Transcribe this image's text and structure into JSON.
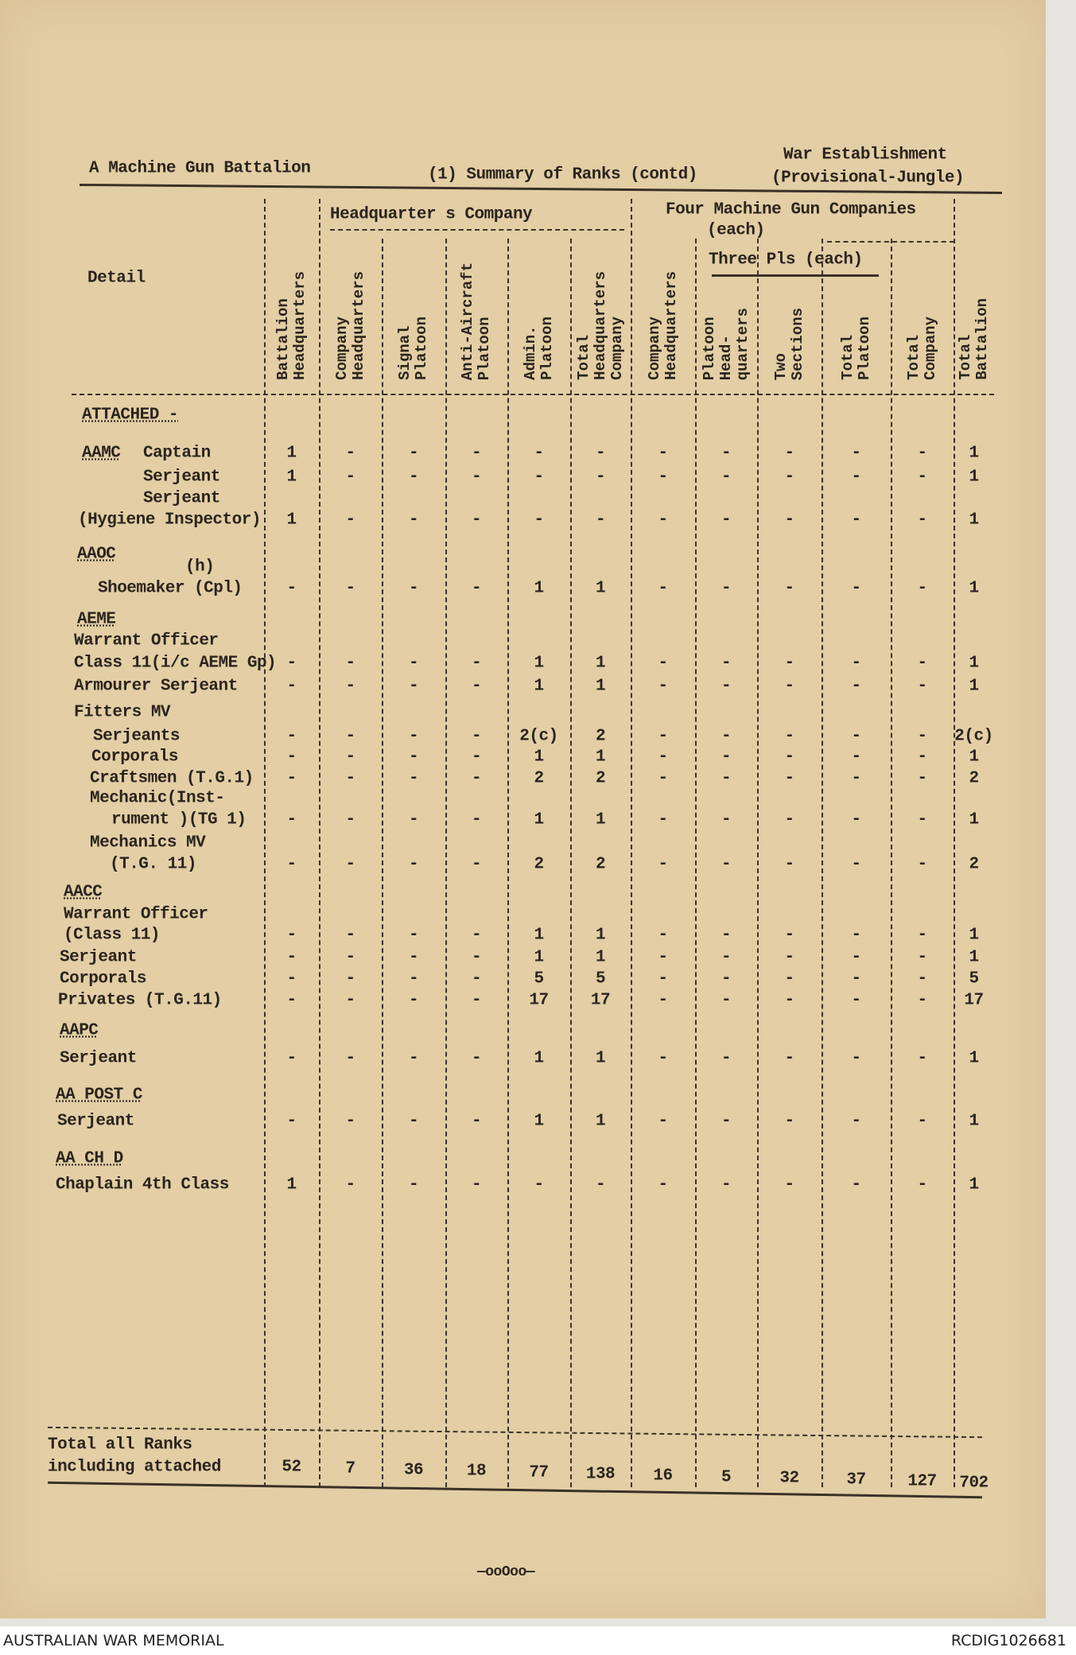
{
  "header": {
    "title": "A Machine Gun Battalion",
    "subtitle": "(1) Summary of Ranks (contd)",
    "establishment_line1": "War Establishment",
    "establishment_line2": "(Provisional-Jungle)"
  },
  "groups": {
    "hq_company": "Headquarter s Company",
    "mg_companies": "Four Machine Gun Companies",
    "mg_each": "(each)",
    "three_pls": "Three Pls (each)"
  },
  "detail_heading": "Detail",
  "columns": [
    [
      "Battalion",
      "Headquarters"
    ],
    [
      "Company",
      "Headquarters"
    ],
    [
      "Signal",
      "Platoon"
    ],
    [
      "Anti-Aircraft",
      "Platoon"
    ],
    [
      "Admin.",
      "Platoon"
    ],
    [
      "Total",
      "Headquarters",
      "Company"
    ],
    [
      "Company",
      "Headquarters"
    ],
    [
      "Platoon",
      "Head-",
      "quarters"
    ],
    [
      "Two",
      "Sections"
    ],
    [
      "Total",
      "Platoon"
    ],
    [
      "Total",
      "Company"
    ],
    [
      "Total",
      "Battalion"
    ]
  ],
  "rows": [
    {
      "section": "ATTACHED -"
    },
    {
      "section": "AAMC",
      "label": [
        "Captain"
      ],
      "values": [
        "1",
        "-",
        "-",
        "-",
        "-",
        "-",
        "-",
        "-",
        "-",
        "-",
        "-",
        "1"
      ]
    },
    {
      "label": [
        "Serjeant"
      ],
      "values": [
        "1",
        "-",
        "-",
        "-",
        "-",
        "-",
        "-",
        "-",
        "-",
        "-",
        "-",
        "1"
      ]
    },
    {
      "label": [
        "Serjeant",
        "(Hygiene Inspector)"
      ],
      "values": [
        "1",
        "-",
        "-",
        "-",
        "-",
        "-",
        "-",
        "-",
        "-",
        "-",
        "-",
        "1"
      ]
    },
    {
      "section": "AAOC",
      "note": "(h)"
    },
    {
      "label": [
        "Shoemaker (Cpl)"
      ],
      "values": [
        "-",
        "-",
        "-",
        "-",
        "1",
        "1",
        "-",
        "-",
        "-",
        "-",
        "-",
        "1"
      ]
    },
    {
      "section": "AEME"
    },
    {
      "label": [
        "Warrant Officer",
        "Class 11(i/c AEME Gp)"
      ],
      "values": [
        "-",
        "-",
        "-",
        "-",
        "1",
        "1",
        "-",
        "-",
        "-",
        "-",
        "-",
        "1"
      ]
    },
    {
      "label": [
        "Armourer Serjeant"
      ],
      "values": [
        "-",
        "-",
        "-",
        "-",
        "1",
        "1",
        "-",
        "-",
        "-",
        "-",
        "-",
        "1"
      ]
    },
    {
      "label": [
        "Fitters MV"
      ]
    },
    {
      "label": [
        "Serjeants"
      ],
      "values": [
        "-",
        "-",
        "-",
        "-",
        "2(c)",
        "2",
        "-",
        "-",
        "-",
        "-",
        "-",
        "2(c)"
      ]
    },
    {
      "label": [
        "Corporals"
      ],
      "values": [
        "-",
        "-",
        "-",
        "-",
        "1",
        "1",
        "-",
        "-",
        "-",
        "-",
        "-",
        "1"
      ]
    },
    {
      "label": [
        "Craftsmen (T.G.1)"
      ],
      "values": [
        "-",
        "-",
        "-",
        "-",
        "2",
        "2",
        "-",
        "-",
        "-",
        "-",
        "-",
        "2"
      ]
    },
    {
      "label": [
        "Mechanic(Inst-",
        "rument )(TG 1)"
      ],
      "values": [
        "-",
        "-",
        "-",
        "-",
        "1",
        "1",
        "-",
        "-",
        "-",
        "-",
        "-",
        "1"
      ]
    },
    {
      "label": [
        "Mechanics MV",
        "(T.G. 11)"
      ],
      "values": [
        "-",
        "-",
        "-",
        "-",
        "2",
        "2",
        "-",
        "-",
        "-",
        "-",
        "-",
        "2"
      ]
    },
    {
      "section": "AACC"
    },
    {
      "label": [
        "Warrant Officer",
        "(Class 11)"
      ],
      "values": [
        "-",
        "-",
        "-",
        "-",
        "1",
        "1",
        "-",
        "-",
        "-",
        "-",
        "-",
        "1"
      ]
    },
    {
      "label": [
        "Serjeant"
      ],
      "values": [
        "-",
        "-",
        "-",
        "-",
        "1",
        "1",
        "-",
        "-",
        "-",
        "-",
        "-",
        "1"
      ]
    },
    {
      "label": [
        "Corporals"
      ],
      "values": [
        "-",
        "-",
        "-",
        "-",
        "5",
        "5",
        "-",
        "-",
        "-",
        "-",
        "-",
        "5"
      ]
    },
    {
      "label": [
        "Privates (T.G.11)"
      ],
      "values": [
        "-",
        "-",
        "-",
        "-",
        "17",
        "17",
        "-",
        "-",
        "-",
        "-",
        "-",
        "17"
      ]
    },
    {
      "section": "AAPC"
    },
    {
      "label": [
        "Serjeant"
      ],
      "values": [
        "-",
        "-",
        "-",
        "-",
        "1",
        "1",
        "-",
        "-",
        "-",
        "-",
        "-",
        "1"
      ]
    },
    {
      "section": "AA POST C"
    },
    {
      "label": [
        "Serjeant"
      ],
      "values": [
        "-",
        "-",
        "-",
        "-",
        "1",
        "1",
        "-",
        "-",
        "-",
        "-",
        "-",
        "1"
      ]
    },
    {
      "section": "AA CH D"
    },
    {
      "label": [
        "Chaplain 4th Class"
      ],
      "values": [
        "1",
        "-",
        "-",
        "-",
        "-",
        "-",
        "-",
        "-",
        "-",
        "-",
        "-",
        "1"
      ]
    }
  ],
  "totals": {
    "label": [
      "Total all Ranks",
      "including attached"
    ],
    "values": [
      "52",
      "7",
      "36",
      "18",
      "77",
      "138",
      "16",
      "5",
      "32",
      "37",
      "127",
      "702"
    ]
  },
  "end_mark": "—ooOoo—",
  "footer": {
    "left": "AUSTRALIAN WAR MEMORIAL",
    "right": "RCDIG1026681"
  }
}
